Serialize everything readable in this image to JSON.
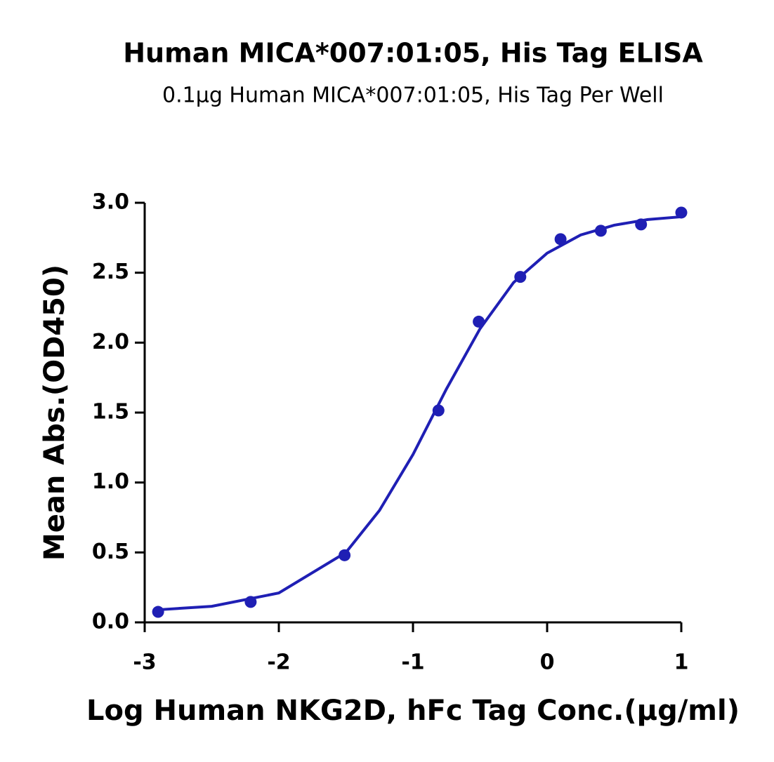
{
  "chart_data": {
    "type": "scatter",
    "title": "Human MICA*007:01:05, His Tag ELISA",
    "subtitle": "0.1μg Human MICA*007:01:05, His Tag Per Well",
    "x_label": "Log Human NKG2D, hFc Tag Conc.(μg/ml)",
    "y_label": "Mean Abs.(OD450)",
    "color": "#1f1fb4",
    "x": [
      -2.9,
      -2.21,
      -1.51,
      -0.81,
      -0.51,
      -0.2,
      0.1,
      0.4,
      0.7,
      1.0
    ],
    "values": [
      0.075,
      0.146,
      0.48,
      1.515,
      2.15,
      2.47,
      2.74,
      2.8,
      2.845,
      2.93
    ],
    "curve": {
      "x": [
        -2.9,
        -2.5,
        -2,
        -1.5,
        -1.25,
        -1,
        -0.75,
        -0.5,
        -0.25,
        0,
        0.25,
        0.5,
        0.75,
        1
      ],
      "values": [
        0.09,
        0.115,
        0.21,
        0.5,
        0.8,
        1.2,
        1.67,
        2.1,
        2.43,
        2.64,
        2.77,
        2.84,
        2.88,
        2.9
      ]
    },
    "xlim": [
      -3,
      1
    ],
    "xticks": [
      -3,
      -2,
      -1,
      0,
      1
    ],
    "ylim": [
      0,
      3
    ],
    "yticks": [
      {
        "value": 0,
        "label": "0.0"
      },
      {
        "value": 0.5,
        "label": "0.5"
      },
      {
        "value": 1,
        "label": "1.0"
      },
      {
        "value": 1.5,
        "label": "1.5"
      },
      {
        "value": 2,
        "label": "2.0"
      },
      {
        "value": 2.5,
        "label": "2.5"
      },
      {
        "value": 3,
        "label": "3.0"
      }
    ],
    "grid": false
  }
}
